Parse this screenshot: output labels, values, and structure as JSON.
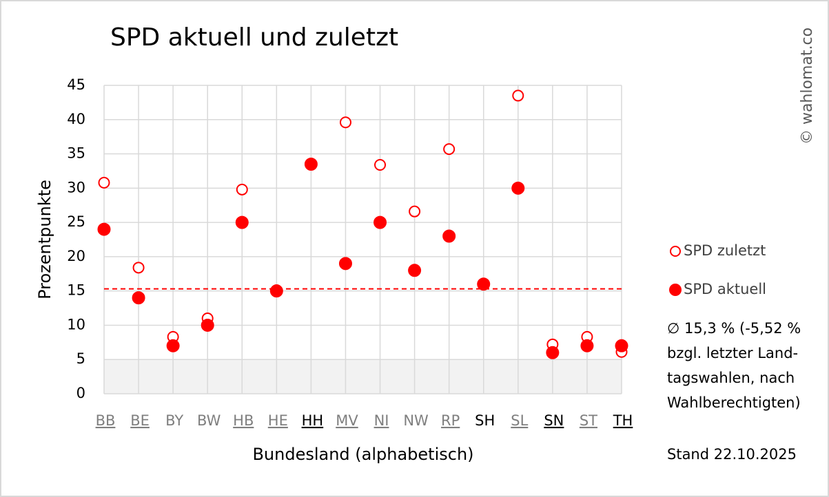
{
  "chart_data": {
    "type": "scatter",
    "title": "SPD aktuell und zuletzt",
    "x_label": "Bundesland (alphabetisch)",
    "y_label": "Prozentpunkte",
    "categories": [
      "BB",
      "BE",
      "BY",
      "BW",
      "HB",
      "HE",
      "HH",
      "MV",
      "NI",
      "NW",
      "RP",
      "SH",
      "SL",
      "SN",
      "ST",
      "TH"
    ],
    "category_colors": [
      "#7f7f7f",
      "#7f7f7f",
      "#7f7f7f",
      "#7f7f7f",
      "#7f7f7f",
      "#7f7f7f",
      "#000000",
      "#7f7f7f",
      "#7f7f7f",
      "#7f7f7f",
      "#7f7f7f",
      "#000000",
      "#7f7f7f",
      "#000000",
      "#7f7f7f",
      "#000000"
    ],
    "category_underline": [
      true,
      true,
      false,
      false,
      true,
      true,
      true,
      true,
      true,
      false,
      true,
      false,
      true,
      true,
      true,
      true
    ],
    "series": [
      {
        "name": "SPD zuletzt",
        "color": "#ff0000",
        "marker": "hollow",
        "values": [
          30.8,
          18.4,
          8.3,
          11,
          29.8,
          15.1,
          33.5,
          39.6,
          33.4,
          26.6,
          35.7,
          16,
          43.5,
          7.2,
          8.3,
          6.1
        ]
      },
      {
        "name": "SPD aktuell",
        "color": "#ff0000",
        "marker": "filled",
        "values": [
          24,
          14,
          7,
          10,
          25,
          15,
          33.5,
          19,
          25,
          18,
          23,
          16,
          30,
          6,
          7,
          7
        ]
      }
    ],
    "ylim": [
      0,
      45
    ],
    "yticks": [
      0,
      5,
      10,
      15,
      20,
      25,
      30,
      35,
      40,
      45
    ],
    "grid": true,
    "mean_line": 15.3,
    "threshold": 5,
    "legend_position": "right",
    "annotation_lines": [
      "∅ 15,3 % (-5,52 %",
      "bzgl. letzter Land-",
      "tagswahlen, nach",
      "Wahlberechtigten)"
    ],
    "date_note": "Stand 22.10.2025",
    "watermark": "© wahlomat.co"
  }
}
